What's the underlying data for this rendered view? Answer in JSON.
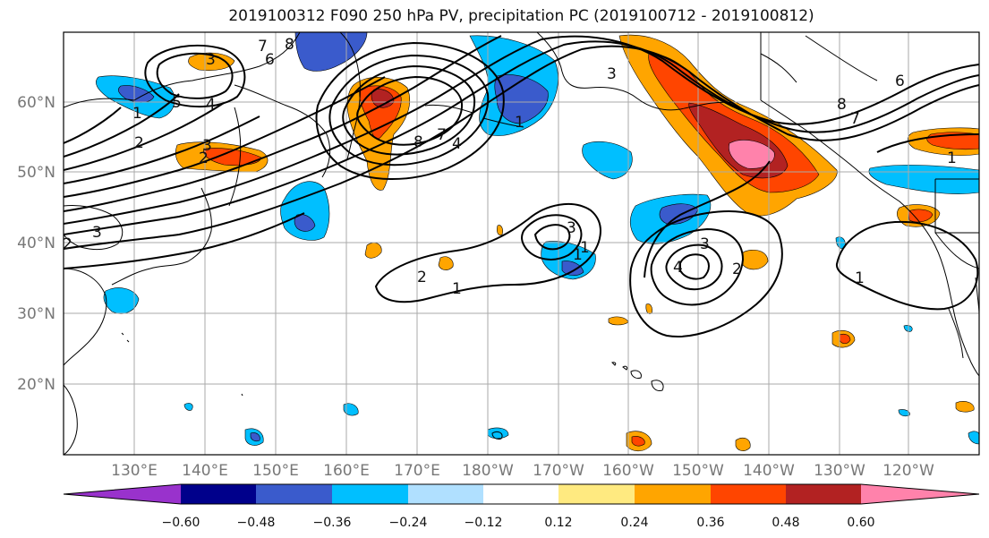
{
  "title": "2019100312 F090 250 hPa PV, precipitation PC (2019100712 - 2019100812)",
  "map": {
    "lat_labels": [
      "60°N",
      "50°N",
      "40°N",
      "30°N",
      "20°N"
    ],
    "lon_labels": [
      "130°E",
      "140°E",
      "150°E",
      "160°E",
      "170°E",
      "180°W",
      "170°W",
      "160°W",
      "150°W",
      "140°W",
      "130°W",
      "120°W"
    ],
    "contour_labels": [
      "8",
      "7",
      "6",
      "5",
      "4",
      "3",
      "2",
      "1",
      "8",
      "7",
      "4",
      "1",
      "3",
      "2",
      "1",
      "3",
      "2",
      "1",
      "2",
      "3",
      "1",
      "4",
      "8",
      "7",
      "6",
      "3",
      "2",
      "1",
      "3",
      "1"
    ],
    "colors": {
      "neg_060": "#9932CC",
      "neg_048": "#00008B",
      "neg_036": "#3A5BCC",
      "neg_024": "#00BFFF",
      "neg_012": "#B0E0FF",
      "zero": "#FFFFFF",
      "pos_012": "#FFEA80",
      "pos_024": "#FFA500",
      "pos_036": "#FF4500",
      "pos_048": "#B22222",
      "pos_060": "#FF82AB"
    }
  },
  "colorbar": {
    "labels": [
      "−0.60",
      "−0.48",
      "−0.36",
      "−0.24",
      "−0.12",
      "0.12",
      "0.24",
      "0.36",
      "0.48",
      "0.60"
    ],
    "colors": [
      "#9932CC",
      "#00008B",
      "#3A5BCC",
      "#00BFFF",
      "#B0E0FF",
      "#FFFFFF",
      "#FFEA80",
      "#FFA500",
      "#FF4500",
      "#B22222",
      "#FF82AB"
    ]
  }
}
